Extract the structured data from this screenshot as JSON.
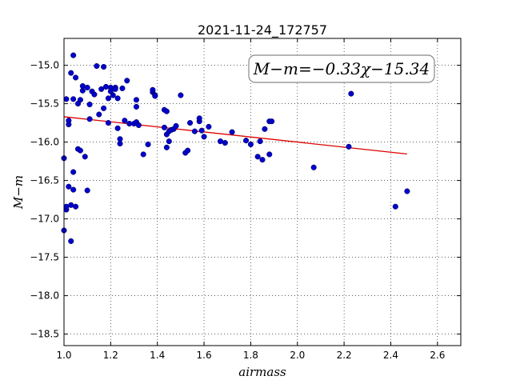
{
  "chart_data": {
    "type": "scatter",
    "title": "2021-11-24_172757",
    "xlabel": "airmass",
    "ylabel": "M−m",
    "xlim": [
      1.0,
      2.7
    ],
    "ylim": [
      -18.65,
      -14.65
    ],
    "y_inverted": true,
    "grid": true,
    "grid_style": "dotted",
    "xticks": [
      1.0,
      1.2,
      1.4,
      1.6,
      1.8,
      2.0,
      2.2,
      2.4,
      2.6
    ],
    "xtick_labels": [
      "1.0",
      "1.2",
      "1.4",
      "1.6",
      "1.8",
      "2.0",
      "2.2",
      "2.4",
      "2.6"
    ],
    "yticks": [
      -15.0,
      -15.5,
      -16.0,
      -16.5,
      -17.0,
      -17.5,
      -18.0,
      -18.5
    ],
    "ytick_labels": [
      "−15.0",
      "−15.5",
      "−16.0",
      "−16.5",
      "−17.0",
      "−17.5",
      "−18.0",
      "−18.5"
    ],
    "annotation": "M−m=−0.33χ−15.34",
    "point_color": "#0000cc",
    "fit_color": "#dd0000",
    "fit": {
      "slope": -0.33,
      "intercept": -15.34,
      "x_range": [
        1.0,
        2.47
      ]
    },
    "series": [
      {
        "x": [
          1.0,
          1.01,
          1.01,
          1.02,
          1.02,
          1.03,
          1.03,
          1.04,
          1.04,
          1.04,
          1.05,
          1.05,
          1.06,
          1.06,
          1.07,
          1.07,
          1.08,
          1.08,
          1.09,
          1.1,
          1.1,
          1.11,
          1.11,
          1.12,
          1.13,
          1.14,
          1.15,
          1.16,
          1.17,
          1.17,
          1.18,
          1.19,
          1.19,
          1.2,
          1.2,
          1.21,
          1.22,
          1.22,
          1.23,
          1.23,
          1.24,
          1.24,
          1.25,
          1.26,
          1.27,
          1.28,
          1.3,
          1.31,
          1.31,
          1.31,
          1.32,
          1.34,
          1.36,
          1.38,
          1.39,
          1.43,
          1.44,
          1.44,
          1.45,
          1.45,
          1.46,
          1.47,
          1.48,
          1.5,
          1.52,
          1.53,
          1.54,
          1.56,
          1.58,
          1.58,
          1.59,
          1.6,
          1.62,
          1.67,
          1.69,
          1.72,
          1.78,
          1.8,
          1.83,
          1.84,
          1.85,
          1.86,
          1.88,
          1.88,
          1.89,
          2.07,
          2.22,
          2.23,
          2.42,
          2.47,
          1.0,
          1.01,
          1.02,
          1.03,
          1.04,
          1.38,
          1.39,
          1.43,
          1.44
        ],
        "y": [
          -16.21,
          -15.44,
          -16.88,
          -15.77,
          -16.58,
          -15.1,
          -16.82,
          -14.87,
          -16.62,
          -16.39,
          -15.16,
          -16.84,
          -16.09,
          -15.5,
          -15.45,
          -16.11,
          -15.33,
          -15.27,
          -16.19,
          -16.63,
          -15.29,
          -15.7,
          -15.51,
          -15.34,
          -15.38,
          -15.01,
          -15.64,
          -15.31,
          -15.56,
          -15.02,
          -15.28,
          -15.43,
          -15.75,
          -15.29,
          -15.34,
          -15.39,
          -15.29,
          -15.31,
          -15.43,
          -15.82,
          -15.96,
          -16.02,
          -15.3,
          -15.72,
          -15.2,
          -15.76,
          -15.76,
          -15.54,
          -15.45,
          -15.74,
          -15.78,
          -16.16,
          -16.03,
          -15.35,
          -15.39,
          -15.81,
          -15.9,
          -16.07,
          -15.86,
          -15.99,
          -15.84,
          -15.83,
          -15.79,
          -15.39,
          -16.14,
          -16.11,
          -15.75,
          -15.86,
          -15.73,
          -15.69,
          -15.85,
          -15.93,
          -15.8,
          -15.99,
          -16.01,
          -15.87,
          -15.98,
          -16.03,
          -16.19,
          -15.99,
          -16.23,
          -15.83,
          -16.16,
          -15.73,
          -15.73,
          -16.33,
          -16.06,
          -15.37,
          -16.84,
          -16.64,
          -17.15,
          -16.84,
          -15.72,
          -17.29,
          -15.44,
          -15.32,
          -15.4,
          -15.58,
          -15.6
        ]
      }
    ]
  }
}
